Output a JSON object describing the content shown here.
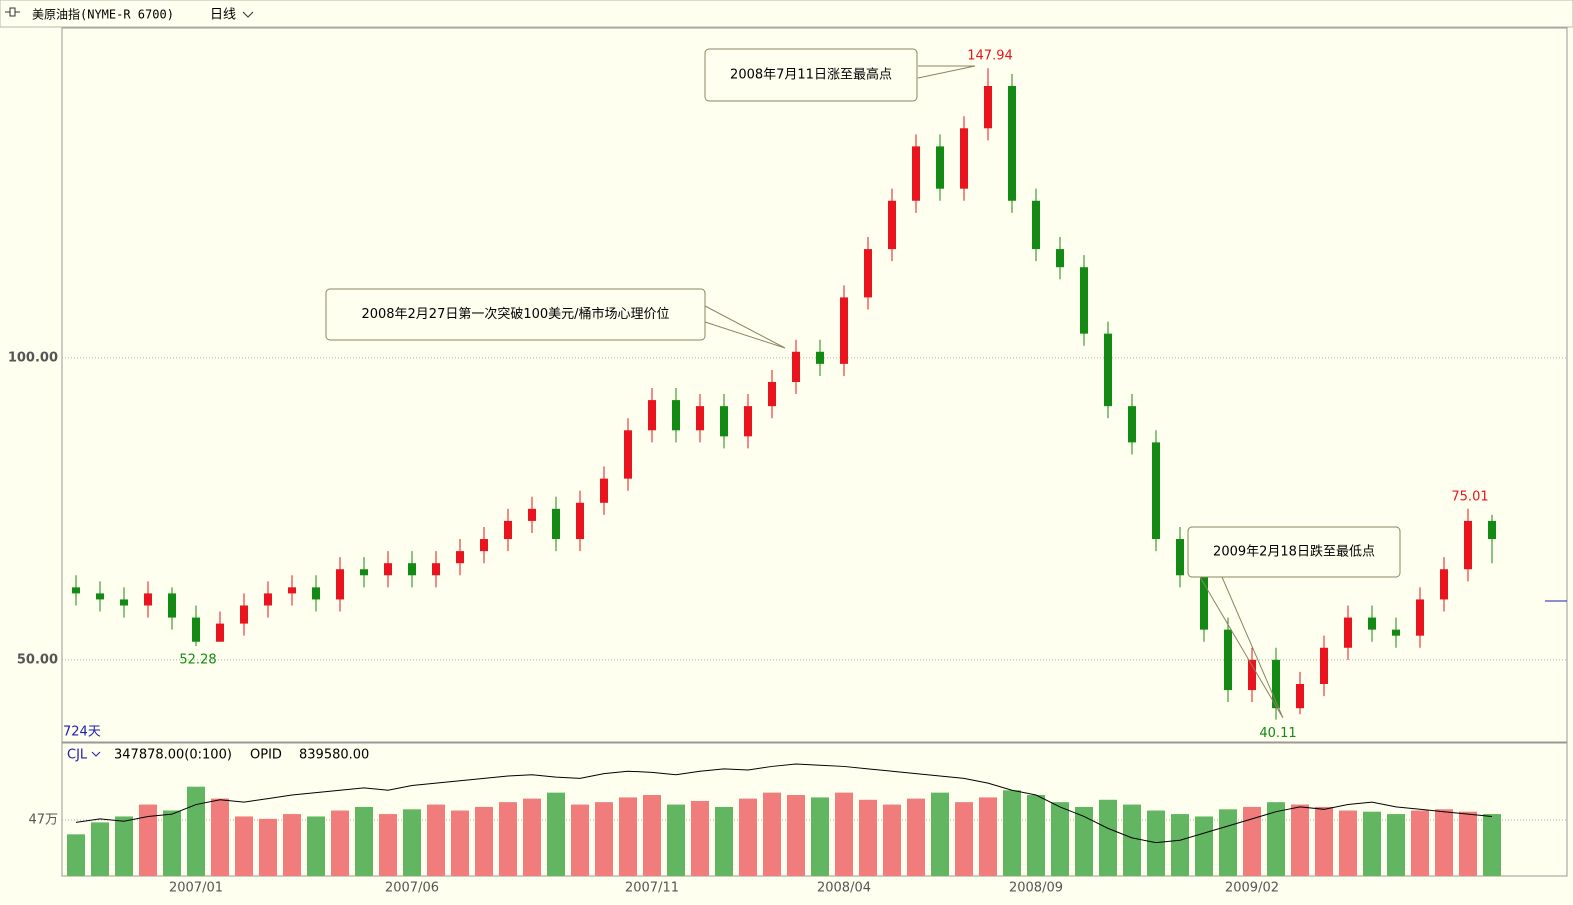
{
  "chart_data": [
    {
      "type": "candlestick",
      "title": "美原油指(NYME-R 6700)",
      "period": "日线",
      "bar_count_label": "724天",
      "open": [
        62,
        61,
        60,
        59,
        61,
        57,
        53,
        56,
        59,
        61,
        62,
        60,
        65,
        64,
        66,
        64,
        66,
        68,
        70,
        73,
        75,
        70,
        76,
        80,
        88,
        93,
        88,
        92,
        87,
        92,
        96,
        101,
        99,
        110,
        118,
        126,
        135,
        128,
        138,
        145,
        126,
        118,
        115,
        104,
        92,
        86,
        70,
        64,
        55,
        45,
        50,
        42,
        46,
        52,
        57,
        55,
        54,
        60,
        65,
        73
      ],
      "high": [
        64,
        63,
        62,
        63,
        62,
        59,
        58,
        61,
        63,
        64,
        64,
        67,
        67,
        68,
        68,
        68,
        70,
        72,
        75,
        77,
        77,
        78,
        82,
        90,
        95,
        95,
        94,
        94,
        94,
        98,
        103,
        103,
        112,
        120,
        128,
        137,
        137,
        140,
        147.94,
        147,
        128,
        120,
        117,
        106,
        94,
        88,
        72,
        66,
        57,
        52,
        52,
        48,
        54,
        59,
        59,
        57,
        62,
        67,
        75.01,
        74
      ],
      "low": [
        59,
        58,
        57,
        57,
        55,
        52.28,
        53,
        54,
        57,
        59,
        58,
        58,
        62,
        62,
        62,
        62,
        64,
        66,
        68,
        71,
        68,
        68,
        74,
        78,
        86,
        86,
        86,
        85,
        85,
        90,
        94,
        97,
        97,
        108,
        116,
        124,
        126,
        126,
        136,
        124,
        116,
        113,
        102,
        90,
        84,
        68,
        62,
        53,
        43,
        43,
        40.11,
        41,
        44,
        50,
        53,
        52,
        52,
        58,
        63,
        66
      ],
      "close": [
        61,
        60,
        59,
        61,
        57,
        53,
        56,
        59,
        61,
        62,
        60,
        65,
        64,
        66,
        64,
        66,
        68,
        70,
        73,
        75,
        70,
        76,
        80,
        88,
        93,
        88,
        92,
        87,
        92,
        96,
        101,
        99,
        110,
        118,
        126,
        135,
        128,
        138,
        145,
        126,
        118,
        115,
        104,
        92,
        86,
        70,
        64,
        55,
        45,
        50,
        42,
        46,
        52,
        57,
        55,
        54,
        60,
        65,
        73,
        70
      ],
      "up_color": "#e8141e",
      "down_color": "#138a13",
      "ylim": [
        36.4,
        154.6
      ],
      "yticks": [
        {
          "value": 50,
          "label": "50.00"
        },
        {
          "value": 100,
          "label": "100.00"
        }
      ],
      "grid": true,
      "annotations": [
        "2008年7月11日涨至最高点",
        "2008年2月27日第一次突破100美元/桶市场心理价位",
        "2009年2月18日跌至最低点"
      ]
    },
    {
      "type": "bar",
      "indicator": "CJL",
      "value_text": "347878.00(0:100)",
      "categories": [
        null,
        null,
        null,
        null,
        null,
        "2007/01",
        null,
        null,
        null,
        null,
        null,
        null,
        null,
        null,
        "2007/06",
        null,
        null,
        null,
        null,
        null,
        null,
        null,
        null,
        null,
        "2007/11",
        null,
        null,
        null,
        null,
        null,
        null,
        null,
        "2008/04",
        null,
        null,
        null,
        null,
        null,
        null,
        null,
        "2008/09",
        null,
        null,
        null,
        null,
        null,
        null,
        null,
        null,
        "2009/02",
        null,
        null,
        null,
        null,
        null,
        null,
        null,
        null,
        null,
        null
      ],
      "values": [
        35,
        45,
        50,
        60,
        55,
        75,
        65,
        50,
        48,
        52,
        50,
        55,
        58,
        52,
        56,
        60,
        55,
        58,
        62,
        65,
        70,
        60,
        62,
        66,
        68,
        60,
        63,
        58,
        65,
        70,
        68,
        66,
        70,
        64,
        60,
        65,
        70,
        62,
        66,
        72,
        68,
        62,
        58,
        64,
        60,
        55,
        52,
        50,
        56,
        58,
        62,
        60,
        58,
        55,
        54,
        52,
        55,
        56,
        54,
        52
      ],
      "up_color": "#f07c7c",
      "down_color": "#62b662",
      "series": [
        {
          "name": "OPID",
          "color": "#000000",
          "value_text": "839580.00",
          "values": [
            45,
            48,
            46,
            50,
            52,
            60,
            64,
            62,
            65,
            68,
            70,
            72,
            74,
            72,
            76,
            78,
            80,
            82,
            84,
            85,
            83,
            82,
            86,
            88,
            87,
            85,
            88,
            90,
            89,
            92,
            94,
            93,
            92,
            90,
            88,
            86,
            84,
            82,
            78,
            72,
            68,
            58,
            50,
            40,
            32,
            28,
            30,
            36,
            42,
            48,
            54,
            58,
            56,
            60,
            62,
            58,
            56,
            54,
            52,
            50
          ]
        }
      ],
      "ylim": [
        0,
        110
      ],
      "yticks": [
        {
          "value": 47,
          "label": "47万"
        }
      ],
      "grid": true
    }
  ]
}
